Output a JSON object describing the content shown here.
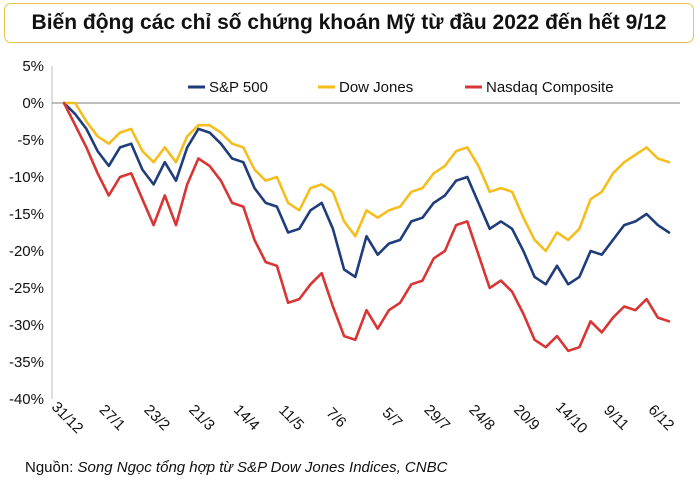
{
  "title": "Biến động các chỉ số chứng khoán Mỹ từ đầu 2022 đến hết 9/12",
  "source_label": "Nguồn:",
  "source_text": "Song Ngọc tổng hợp từ S&P Dow Jones Indices, CNBC",
  "chart_data": {
    "type": "line",
    "title": "Biến động các chỉ số chứng khoán Mỹ từ đầu 2022 đến hết 9/12",
    "xlabel": "",
    "ylabel": "",
    "ylim": [
      -40,
      5
    ],
    "y_ticks": [
      5,
      0,
      -5,
      -10,
      -15,
      -20,
      -25,
      -30,
      -35,
      -40
    ],
    "y_tick_labels": [
      "5%",
      "0%",
      "-5%",
      "-10%",
      "-15%",
      "-20%",
      "-25%",
      "-30%",
      "-35%",
      "-40%"
    ],
    "x_tick_labels": [
      "31/12",
      "27/1",
      "23/2",
      "21/3",
      "14/4",
      "11/5",
      "7/6",
      "5/7",
      "29/7",
      "24/8",
      "20/9",
      "14/10",
      "9/11",
      "6/12"
    ],
    "x": [
      "31/12",
      "6/1",
      "13/1",
      "20/1",
      "27/1",
      "3/2",
      "10/2",
      "17/2",
      "23/2",
      "3/3",
      "10/3",
      "16/3",
      "21/3",
      "29/3",
      "5/4",
      "12/4",
      "14/4",
      "22/4",
      "29/4",
      "5/5",
      "11/5",
      "18/5",
      "25/5",
      "1/6",
      "7/6",
      "13/6",
      "16/6",
      "23/6",
      "30/6",
      "5/7",
      "12/7",
      "19/7",
      "26/7",
      "29/7",
      "5/8",
      "12/8",
      "16/8",
      "24/8",
      "31/8",
      "7/9",
      "13/9",
      "20/9",
      "26/9",
      "30/9",
      "7/10",
      "14/10",
      "21/10",
      "28/10",
      "3/11",
      "9/11",
      "15/11",
      "22/11",
      "30/11",
      "6/12",
      "9/12"
    ],
    "zero_line": true,
    "legend_position": "top-center",
    "series": [
      {
        "name": "S&P 500",
        "color": "#1f3d7a",
        "values": [
          0,
          -1.5,
          -3.5,
          -6.5,
          -8.5,
          -6.0,
          -5.5,
          -9.0,
          -11.0,
          -8.0,
          -10.5,
          -6.0,
          -3.5,
          -4.0,
          -5.5,
          -7.5,
          -8.0,
          -11.5,
          -13.5,
          -14.0,
          -17.5,
          -17.0,
          -14.5,
          -13.5,
          -17.0,
          -22.5,
          -23.5,
          -18.0,
          -20.5,
          -19.0,
          -18.5,
          -16.0,
          -15.5,
          -13.5,
          -12.5,
          -10.5,
          -10.0,
          -13.5,
          -17.0,
          -16.0,
          -17.0,
          -20.0,
          -23.5,
          -24.5,
          -22.0,
          -24.5,
          -23.5,
          -20.0,
          -20.5,
          -18.5,
          -16.5,
          -16.0,
          -15.0,
          -16.5,
          -17.5
        ]
      },
      {
        "name": "Dow Jones",
        "color": "#f4be1e",
        "values": [
          0,
          0.0,
          -2.5,
          -4.5,
          -5.5,
          -4.0,
          -3.5,
          -6.5,
          -8.0,
          -6.0,
          -8.0,
          -4.5,
          -3.0,
          -3.0,
          -4.0,
          -5.5,
          -6.0,
          -9.0,
          -10.5,
          -10.0,
          -13.5,
          -14.5,
          -11.5,
          -11.0,
          -12.0,
          -16.0,
          -18.0,
          -14.5,
          -15.5,
          -14.5,
          -14.0,
          -12.0,
          -11.5,
          -9.5,
          -8.5,
          -6.5,
          -6.0,
          -8.5,
          -12.0,
          -11.5,
          -12.0,
          -15.5,
          -18.5,
          -20.0,
          -17.5,
          -18.5,
          -17.0,
          -13.0,
          -12.0,
          -9.5,
          -8.0,
          -7.0,
          -6.0,
          -7.5,
          -8.0
        ]
      },
      {
        "name": "Nasdaq Composite",
        "color": "#d83535",
        "values": [
          0,
          -3.0,
          -6.0,
          -9.5,
          -12.5,
          -10.0,
          -9.5,
          -13.0,
          -16.5,
          -12.5,
          -16.5,
          -11.0,
          -7.5,
          -8.5,
          -10.5,
          -13.5,
          -14.0,
          -18.5,
          -21.5,
          -22.0,
          -27.0,
          -26.5,
          -24.5,
          -23.0,
          -27.5,
          -31.5,
          -32.0,
          -28.0,
          -30.5,
          -28.0,
          -27.0,
          -24.5,
          -24.0,
          -21.0,
          -20.0,
          -16.5,
          -16.0,
          -20.5,
          -25.0,
          -24.0,
          -25.5,
          -28.5,
          -32.0,
          -33.0,
          -31.5,
          -33.5,
          -33.0,
          -29.5,
          -31.0,
          -29.0,
          -27.5,
          -28.0,
          -26.5,
          -29.0,
          -29.5
        ]
      }
    ]
  }
}
